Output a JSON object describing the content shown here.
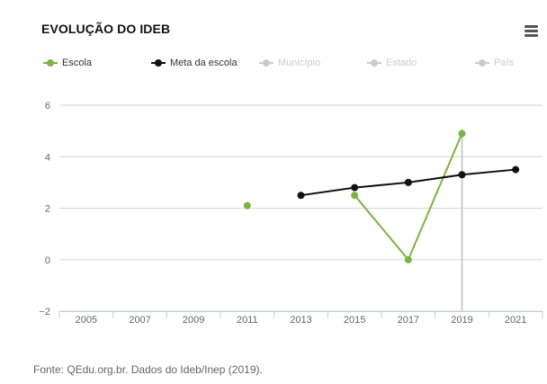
{
  "title": "EVOLUÇÃO DO IDEB",
  "menu_icon": "hamburger-menu-icon",
  "source": "Fonte: QEdu.org.br. Dados do Ideb/Inep (2019).",
  "legend": [
    {
      "name": "Escola",
      "color": "#7cb342",
      "visible": true
    },
    {
      "name": "Meta da escola",
      "color": "#111111",
      "visible": true
    },
    {
      "name": "Município",
      "color": "#cccccc",
      "visible": false
    },
    {
      "name": "Estado",
      "color": "#cccccc",
      "visible": false
    },
    {
      "name": "País",
      "color": "#cccccc",
      "visible": false
    }
  ],
  "chart_data": {
    "type": "line",
    "title": "EVOLUÇÃO DO IDEB",
    "xlabel": "",
    "ylabel": "",
    "categories": [
      "2005",
      "2007",
      "2009",
      "2011",
      "2013",
      "2015",
      "2017",
      "2019",
      "2021"
    ],
    "ylim": [
      -2,
      6
    ],
    "yticks": [
      -2,
      0,
      2,
      4,
      6
    ],
    "grid": true,
    "legend_position": "top",
    "crosshair_category": "2019",
    "series": [
      {
        "name": "Escola",
        "color": "#7cb342",
        "values": [
          null,
          null,
          null,
          2.1,
          null,
          2.5,
          0.0,
          4.9,
          null
        ]
      },
      {
        "name": "Meta da escola",
        "color": "#111111",
        "values": [
          null,
          null,
          null,
          null,
          2.5,
          2.8,
          3.0,
          3.3,
          3.5
        ]
      }
    ]
  }
}
